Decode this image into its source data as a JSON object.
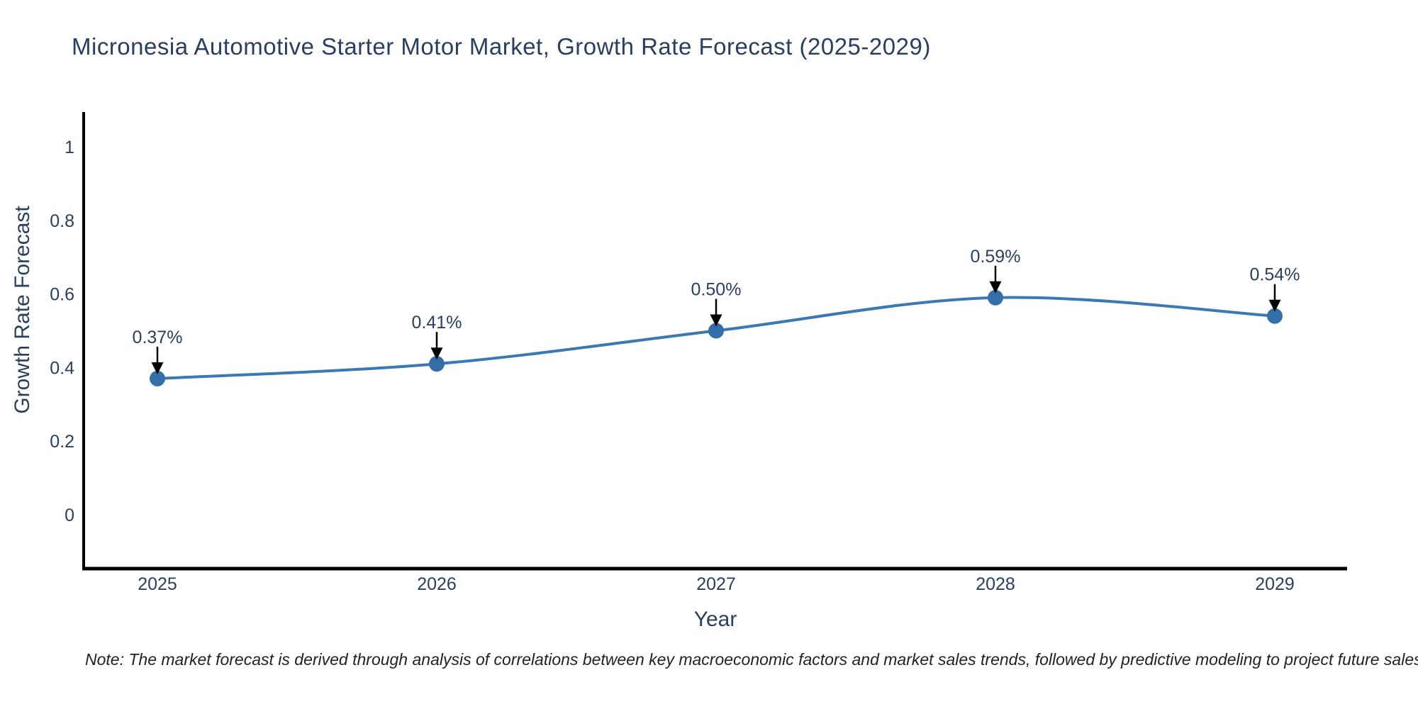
{
  "page": {
    "title": "Micronesia Automotive Starter Motor Market, Growth Rate Forecast (2025-2029)",
    "note": "Note: The market forecast is derived through analysis of correlations between key macroeconomic factors and market sales trends, followed by predictive modeling to project future sales"
  },
  "chart_data": {
    "type": "line",
    "title": "Micronesia Automotive Starter Motor Market, Growth Rate Forecast (2025-2029)",
    "xlabel": "Year",
    "ylabel": "Growth Rate Forecast",
    "x": [
      2025,
      2026,
      2027,
      2028,
      2029
    ],
    "xtick_labels": [
      "2025",
      "2026",
      "2027",
      "2028",
      "2029"
    ],
    "values": [
      0.37,
      0.41,
      0.5,
      0.59,
      0.54
    ],
    "annotations": [
      "0.37%",
      "0.41%",
      "0.50%",
      "0.59%",
      "0.54%"
    ],
    "yticks": [
      0,
      0.2,
      0.4,
      0.6,
      0.8,
      1
    ],
    "ytick_labels": [
      "0",
      "0.2",
      "0.4",
      "0.6",
      "0.8",
      "1"
    ],
    "ylim": [
      -0.15,
      1.09
    ],
    "line_shape": "spline",
    "grid": false,
    "legend": "none",
    "marker_size_px": 22,
    "colors": {
      "line": "#3b79b5",
      "marker": "#356fa9",
      "axis_line": "#000000",
      "text": "#2a3f5f",
      "annotation_arrow": "#000000",
      "note_text": "#222222",
      "background": "#ffffff"
    }
  }
}
